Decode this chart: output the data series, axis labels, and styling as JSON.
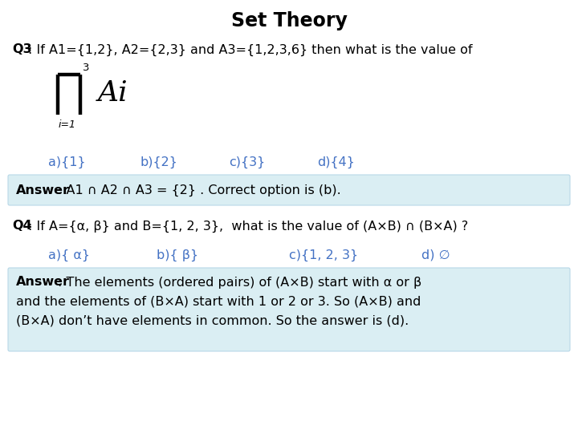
{
  "title": "Set Theory",
  "bg_color": "#ffffff",
  "answer_box_color": "#daeef3",
  "answer_box_edge": "#b8d8e8",
  "title_fontsize": 17,
  "body_fontsize": 11.5,
  "small_fontsize": 10,
  "option_color": "#4472c4",
  "text_color": "#000000",
  "q3_bold": "Q3",
  "q3_rest": ": If A1={1,2}, A2={2,3} and A3={1,2,3,6} then what is the value of",
  "q4_bold": "Q4",
  "q4_rest": ": If A={α, β} and B={1, 2, 3},  what is the value of (A×B) ∩ (B×A) ?",
  "q3_opt_a": "a){1}",
  "q3_opt_b": "b){2}",
  "q3_opt_c": "c){3}",
  "q3_opt_d": "d){4}",
  "q3_ans_bold": "Answer",
  "q3_ans_rest": ": A1 ∩ A2 ∩ A3 = {2} . Correct option is (b).",
  "q4_opt_a": "a){ α}",
  "q4_opt_b": "b){ β}",
  "q4_opt_c": "c){1, 2, 3}",
  "q4_opt_d": "d) ∅",
  "q4_ans_bold": "Answer",
  "q4_ans_line1_rest": ": The elements (ordered pairs) of (A×B) start with α or β",
  "q4_ans_line2": "and the elements of (B×A) start with 1 or 2 or 3. So (A×B) and",
  "q4_ans_line3": "(B×A) don’t have elements in common. So the answer is (d)."
}
